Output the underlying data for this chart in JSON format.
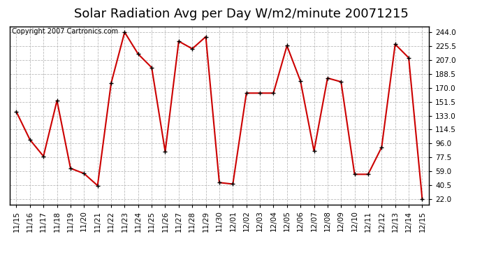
{
  "title": "Solar Radiation Avg per Day W/m2/minute 20071215",
  "copyright": "Copyright 2007 Cartronics.com",
  "dates": [
    "11/15",
    "11/16",
    "11/17",
    "11/18",
    "11/19",
    "11/20",
    "11/21",
    "11/22",
    "11/23",
    "11/24",
    "11/25",
    "11/26",
    "11/27",
    "11/28",
    "11/29",
    "11/30",
    "12/01",
    "12/02",
    "12/03",
    "12/04",
    "12/05",
    "12/06",
    "12/07",
    "12/08",
    "12/09",
    "12/10",
    "12/11",
    "12/12",
    "12/13",
    "12/14",
    "12/15"
  ],
  "values": [
    138,
    101,
    79,
    153,
    63,
    56,
    40,
    176,
    244,
    215,
    197,
    85,
    232,
    222,
    238,
    44,
    42,
    163,
    163,
    163,
    226,
    179,
    86,
    183,
    178,
    55,
    55,
    91,
    228,
    210,
    22
  ],
  "line_color": "#cc0000",
  "marker_color": "#000000",
  "plot_bg_color": "#ffffff",
  "grid_color": "#bbbbbb",
  "yticks": [
    22.0,
    40.5,
    59.0,
    77.5,
    96.0,
    114.5,
    133.0,
    151.5,
    170.0,
    188.5,
    207.0,
    225.5,
    244.0
  ],
  "ylim": [
    15,
    252
  ],
  "title_fontsize": 13,
  "copyright_fontsize": 7,
  "tick_fontsize": 7.5,
  "fig_bg_color": "#ffffff"
}
